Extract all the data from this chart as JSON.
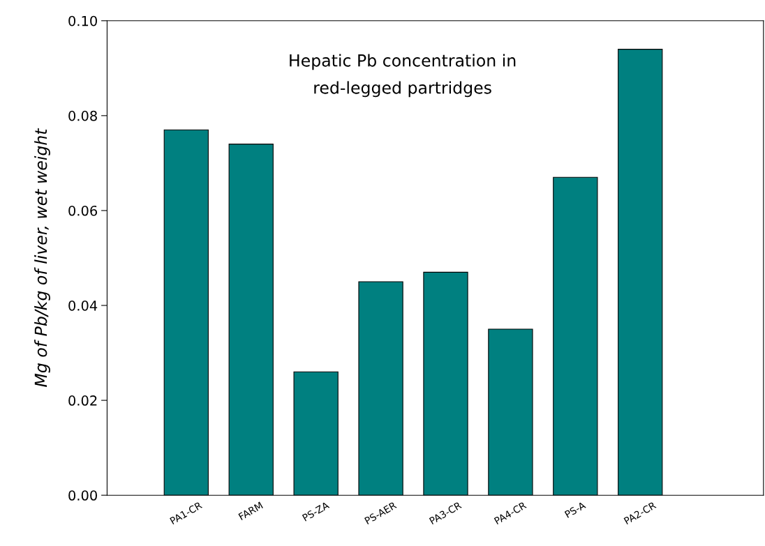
{
  "chart_data": {
    "type": "bar",
    "title": "Hepatic Pb concentration in\nred-legged partridges",
    "ylabel": "Mg of Pb/kg of liver, wet weight",
    "categories": [
      "PA1-CR",
      "FARM",
      "PS-ZA",
      "PS-AER",
      "PA3-CR",
      "PA4-CR",
      "PS-A",
      "PA2-CR"
    ],
    "values": [
      0.077,
      0.074,
      0.026,
      0.045,
      0.047,
      0.035,
      0.067,
      0.094
    ],
    "color": "#008080",
    "ylim": [
      0,
      0.1
    ],
    "yticks": [
      {
        "value": 0,
        "label": "0.00"
      },
      {
        "value": 0.02,
        "label": "0.02"
      },
      {
        "value": 0.04,
        "label": "0.04"
      },
      {
        "value": 0.06,
        "label": "0.06"
      },
      {
        "value": 0.08,
        "label": "0.08"
      },
      {
        "value": 0.1,
        "label": "0.10"
      }
    ],
    "grid": false,
    "legend": false
  }
}
